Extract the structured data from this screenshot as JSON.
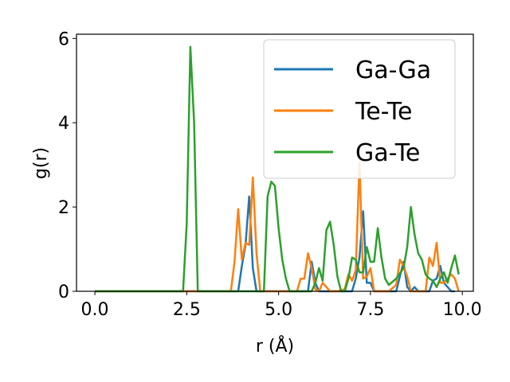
{
  "chart_data": {
    "type": "line",
    "title": "",
    "xlabel": "r (Å)",
    "ylabel": "g(r)",
    "xlim": [
      -0.5,
      10.3
    ],
    "ylim": [
      0,
      6.1
    ],
    "xticks": [
      "0.0",
      "2.5",
      "5.0",
      "7.5",
      "10.0"
    ],
    "xtick_values": [
      0,
      2.5,
      5,
      7.5,
      10
    ],
    "yticks": [
      "0",
      "2",
      "4",
      "6"
    ],
    "ytick_values": [
      0,
      2,
      4,
      6
    ],
    "grid": false,
    "legend_position": "top-right",
    "series": [
      {
        "name": "Ga-Ga",
        "color": "#1f77b4",
        "x": [
          0.0,
          0.2,
          0.4,
          0.6,
          0.8,
          1.0,
          1.2,
          1.4,
          1.6,
          1.8,
          2.0,
          2.2,
          2.4,
          2.6,
          2.8,
          3.0,
          3.2,
          3.4,
          3.6,
          3.8,
          3.9,
          4.0,
          4.1,
          4.2,
          4.3,
          4.4,
          4.5,
          4.6,
          4.8,
          5.0,
          5.2,
          5.4,
          5.6,
          5.8,
          5.9,
          6.0,
          6.1,
          6.2,
          6.4,
          6.6,
          6.8,
          7.0,
          7.1,
          7.2,
          7.3,
          7.4,
          7.5,
          7.6,
          7.7,
          7.8,
          8.0,
          8.2,
          8.4,
          8.5,
          8.6,
          8.7,
          8.8,
          9.0,
          9.1,
          9.2,
          9.3,
          9.4,
          9.5,
          9.6,
          9.7,
          9.8
        ],
        "y": [
          0,
          0,
          0,
          0,
          0,
          0,
          0,
          0,
          0,
          0,
          0,
          0,
          0,
          0,
          0,
          0,
          0,
          0,
          0,
          0,
          0,
          0.6,
          1.1,
          2.25,
          0.55,
          0,
          0,
          0,
          0,
          0,
          0,
          0,
          0,
          0,
          0.7,
          0.2,
          0,
          0,
          0,
          0,
          0,
          0,
          0.3,
          0.8,
          1.9,
          0.2,
          0.2,
          0,
          0,
          0,
          0,
          0,
          0.7,
          0.1,
          0,
          0.1,
          0,
          0,
          0,
          0.25,
          0.3,
          0.6,
          0.2,
          0.1,
          0,
          0
        ]
      },
      {
        "name": "Te-Te",
        "color": "#ff7f0e",
        "x": [
          0.0,
          0.5,
          1.0,
          1.5,
          2.0,
          2.5,
          3.0,
          3.5,
          3.7,
          3.8,
          3.9,
          4.0,
          4.1,
          4.2,
          4.3,
          4.4,
          4.5,
          4.6,
          5.0,
          5.5,
          5.6,
          5.7,
          5.8,
          5.9,
          6.0,
          6.1,
          6.2,
          6.4,
          6.6,
          6.8,
          6.9,
          7.0,
          7.1,
          7.2,
          7.3,
          7.4,
          7.5,
          7.6,
          7.7,
          7.8,
          8.0,
          8.2,
          8.3,
          8.4,
          8.5,
          8.6,
          8.8,
          9.0,
          9.1,
          9.2,
          9.3,
          9.4,
          9.5,
          9.6,
          9.7,
          9.8,
          9.9
        ],
        "y": [
          0,
          0,
          0,
          0,
          0,
          0,
          0,
          0,
          0,
          0.7,
          1.95,
          0.75,
          1.15,
          1.1,
          2.7,
          0.9,
          0,
          0,
          0,
          0,
          0.3,
          0.3,
          0.9,
          0.55,
          0.05,
          0,
          0.2,
          0,
          0,
          0.05,
          0.4,
          0.25,
          0.5,
          3.05,
          0.3,
          0.35,
          0.55,
          0,
          0,
          0,
          0,
          0.15,
          0.75,
          0.6,
          0.35,
          0,
          0,
          0,
          0.8,
          0.6,
          1.15,
          0.2,
          0.2,
          0.3,
          0.4,
          0.3,
          0
        ]
      },
      {
        "name": "Ga-Te",
        "color": "#2ca02c",
        "x": [
          0.0,
          0.5,
          1.0,
          1.5,
          2.0,
          2.4,
          2.5,
          2.6,
          2.7,
          2.8,
          2.9,
          3.0,
          3.5,
          4.0,
          4.5,
          4.6,
          4.7,
          4.8,
          4.9,
          5.0,
          5.1,
          5.2,
          5.3,
          5.4,
          5.6,
          5.8,
          5.9,
          6.0,
          6.1,
          6.2,
          6.3,
          6.4,
          6.5,
          6.6,
          6.7,
          6.8,
          6.9,
          7.0,
          7.1,
          7.2,
          7.3,
          7.4,
          7.5,
          7.6,
          7.7,
          7.8,
          7.9,
          8.0,
          8.2,
          8.4,
          8.5,
          8.6,
          8.7,
          8.8,
          8.9,
          9.0,
          9.1,
          9.2,
          9.3,
          9.4,
          9.5,
          9.6,
          9.7,
          9.8,
          9.9
        ],
        "y": [
          0,
          0,
          0,
          0,
          0,
          0,
          1.6,
          5.8,
          4.0,
          0,
          0,
          0,
          0,
          0,
          0,
          0,
          2.25,
          2.6,
          2.5,
          1.5,
          0.75,
          0.3,
          0,
          0,
          0,
          0,
          0,
          0.2,
          0.55,
          0.25,
          1.45,
          1.65,
          1.1,
          0.35,
          0,
          0,
          0.3,
          0.8,
          0.75,
          0.45,
          0.45,
          1.05,
          0.7,
          0.7,
          1.5,
          0.8,
          0.3,
          0.15,
          0.3,
          0.55,
          1.05,
          2.0,
          1.35,
          0.9,
          0.75,
          0.4,
          0.3,
          0.25,
          0.1,
          0.3,
          0.45,
          0.2,
          0.55,
          0.85,
          0.4
        ]
      }
    ]
  }
}
